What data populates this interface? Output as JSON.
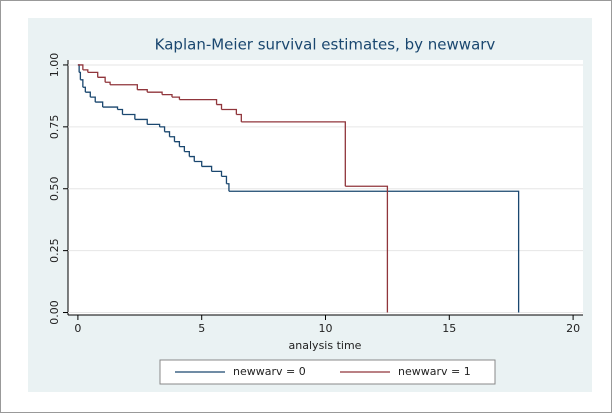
{
  "chart_data": {
    "type": "step",
    "title": "Kaplan-Meier survival estimates, by newwarv",
    "xlabel": "analysis time",
    "xlim": [
      -0.4,
      20.4
    ],
    "xticks": [
      0,
      5,
      10,
      15,
      20
    ],
    "ylim": [
      -0.01,
      1.02
    ],
    "yticks": [
      {
        "value": 0,
        "label": "0.00"
      },
      {
        "value": 0.25,
        "label": "0.25"
      },
      {
        "value": 0.5,
        "label": "0.50"
      },
      {
        "value": 0.75,
        "label": "0.75"
      },
      {
        "value": 1,
        "label": "1.00"
      }
    ],
    "grid": true,
    "legend": "bottom",
    "series": [
      {
        "name": "newwarv = 0",
        "color": "#1a476f",
        "x": [
          0,
          0.05,
          0.1,
          0.2,
          0.3,
          0.5,
          0.7,
          1.0,
          1.6,
          1.8,
          2.3,
          2.8,
          3.3,
          3.5,
          3.7,
          3.9,
          4.1,
          4.3,
          4.5,
          4.7,
          5.0,
          5.4,
          5.8,
          6.0,
          6.1,
          17.8
        ],
        "values": [
          1,
          0.97,
          0.94,
          0.91,
          0.89,
          0.87,
          0.85,
          0.83,
          0.82,
          0.8,
          0.78,
          0.76,
          0.75,
          0.73,
          0.71,
          0.69,
          0.67,
          0.65,
          0.63,
          0.61,
          0.59,
          0.57,
          0.55,
          0.52,
          0.49,
          0
        ]
      },
      {
        "name": "newwarv = 1",
        "color": "#90353b",
        "x": [
          0,
          0.2,
          0.4,
          0.8,
          1.1,
          1.3,
          2.4,
          2.8,
          3.4,
          3.8,
          4.1,
          5.6,
          5.8,
          6.4,
          6.6,
          10.8,
          12.5
        ],
        "values": [
          1,
          0.98,
          0.97,
          0.95,
          0.93,
          0.92,
          0.9,
          0.89,
          0.88,
          0.87,
          0.86,
          0.84,
          0.82,
          0.8,
          0.77,
          0.51,
          0
        ]
      }
    ]
  }
}
